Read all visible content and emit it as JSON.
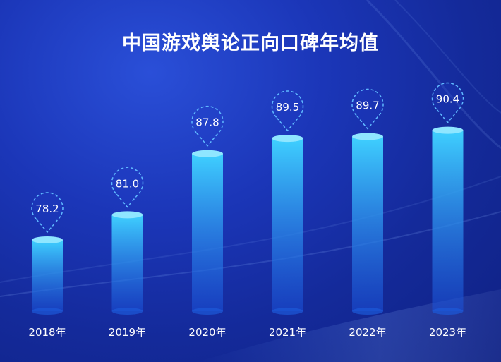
{
  "chart_data": {
    "type": "bar",
    "title": "中国游戏舆论正向口碑年均值",
    "categories": [
      "2018年",
      "2019年",
      "2020年",
      "2021年",
      "2022年",
      "2023年"
    ],
    "values": [
      78.2,
      81.0,
      87.8,
      89.5,
      89.7,
      90.4
    ],
    "value_labels": [
      "78.2",
      "81.0",
      "87.8",
      "89.5",
      "89.7",
      "90.4"
    ],
    "xlabel": "",
    "ylabel": "",
    "grid": false,
    "legend": "none"
  },
  "colors": {
    "background": "#1b36b8",
    "bar_top": "#3fd0ff",
    "bar_bottom": "#1a4fd8",
    "bar_cap": "#8fe6ff",
    "marker_stroke": "#5fb8ff",
    "text": "#ffffff"
  }
}
